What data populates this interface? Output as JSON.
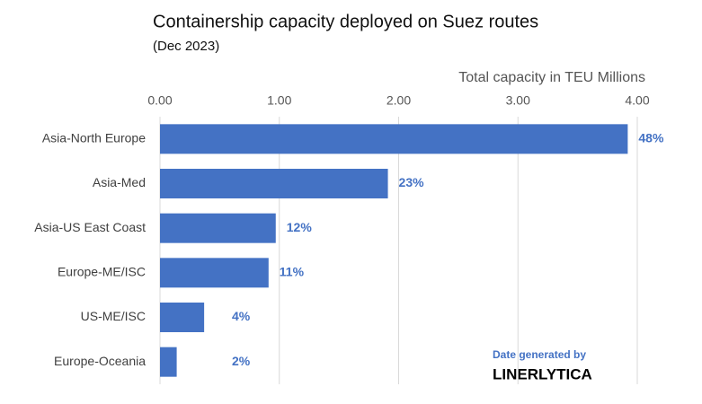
{
  "chart_data": {
    "type": "hbar",
    "title": "Containership capacity deployed on Suez routes",
    "subtitle": "(Dec 2023)",
    "x_label": "Total capacity in TEU Millions",
    "categories": [
      "Asia-North Europe",
      "Asia-Med",
      "Asia-US East Coast",
      "Europe-ME/ISC",
      "US-ME/ISC",
      "Europe-Oceania"
    ],
    "values": [
      3.92,
      1.91,
      0.97,
      0.91,
      0.37,
      0.14
    ],
    "share_labels": [
      "48%",
      "23%",
      "12%",
      "11%",
      "4%",
      "2%"
    ],
    "color": "#4472c4",
    "xlim": [
      0,
      4
    ],
    "xticks": [
      {
        "value": 0,
        "label": "0.00"
      },
      {
        "value": 1,
        "label": "1.00"
      },
      {
        "value": 2,
        "label": "2.00"
      },
      {
        "value": 3,
        "label": "3.00"
      },
      {
        "value": 4,
        "label": "4.00"
      }
    ],
    "grid": true,
    "annotations": [
      "Date generated by",
      "LINERLYTICA"
    ]
  }
}
